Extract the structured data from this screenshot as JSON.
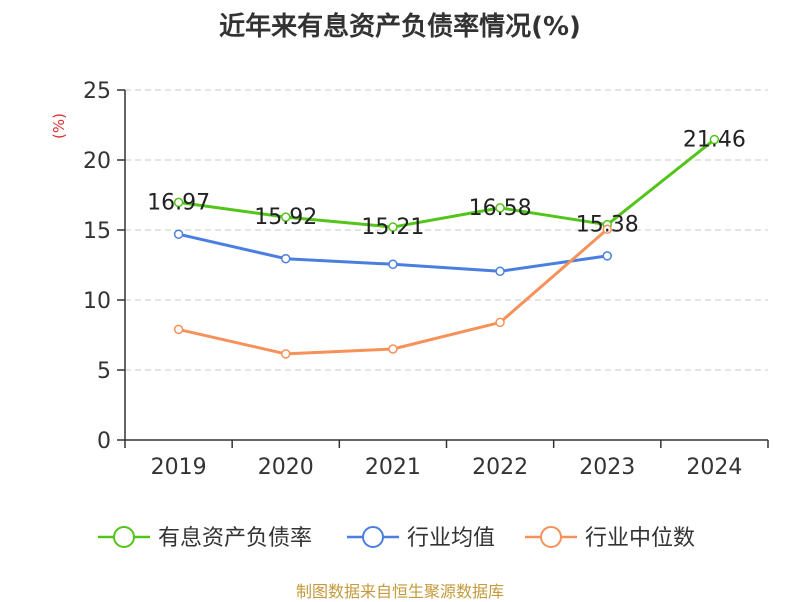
{
  "chart_data": {
    "type": "line",
    "title": "近年来有息资产负债率情况(%)",
    "ylabel": "(%)",
    "xlabel": "",
    "categories": [
      "2019",
      "2020",
      "2021",
      "2022",
      "2023",
      "2024"
    ],
    "ylim": [
      0,
      25
    ],
    "yticks": [
      "0",
      "5",
      "10",
      "15",
      "20",
      "25"
    ],
    "grid": "horizontal-dashed",
    "legend_position": "bottom",
    "series": [
      {
        "name": "有息资产负债率",
        "color": "#52c41a",
        "values": [
          16.97,
          15.92,
          15.21,
          16.58,
          15.38,
          21.46
        ],
        "labels": [
          "16.97",
          "15.92",
          "15.21",
          "16.58",
          "15.38",
          "21.46"
        ]
      },
      {
        "name": "行业均值",
        "color": "#4a7fe0",
        "values": [
          14.7,
          12.95,
          12.55,
          12.05,
          13.15,
          null
        ]
      },
      {
        "name": "行业中位数",
        "color": "#f7915a",
        "values": [
          7.9,
          6.15,
          6.5,
          8.4,
          15.05,
          null
        ]
      }
    ]
  },
  "source": "制图数据来自恒生聚源数据库"
}
